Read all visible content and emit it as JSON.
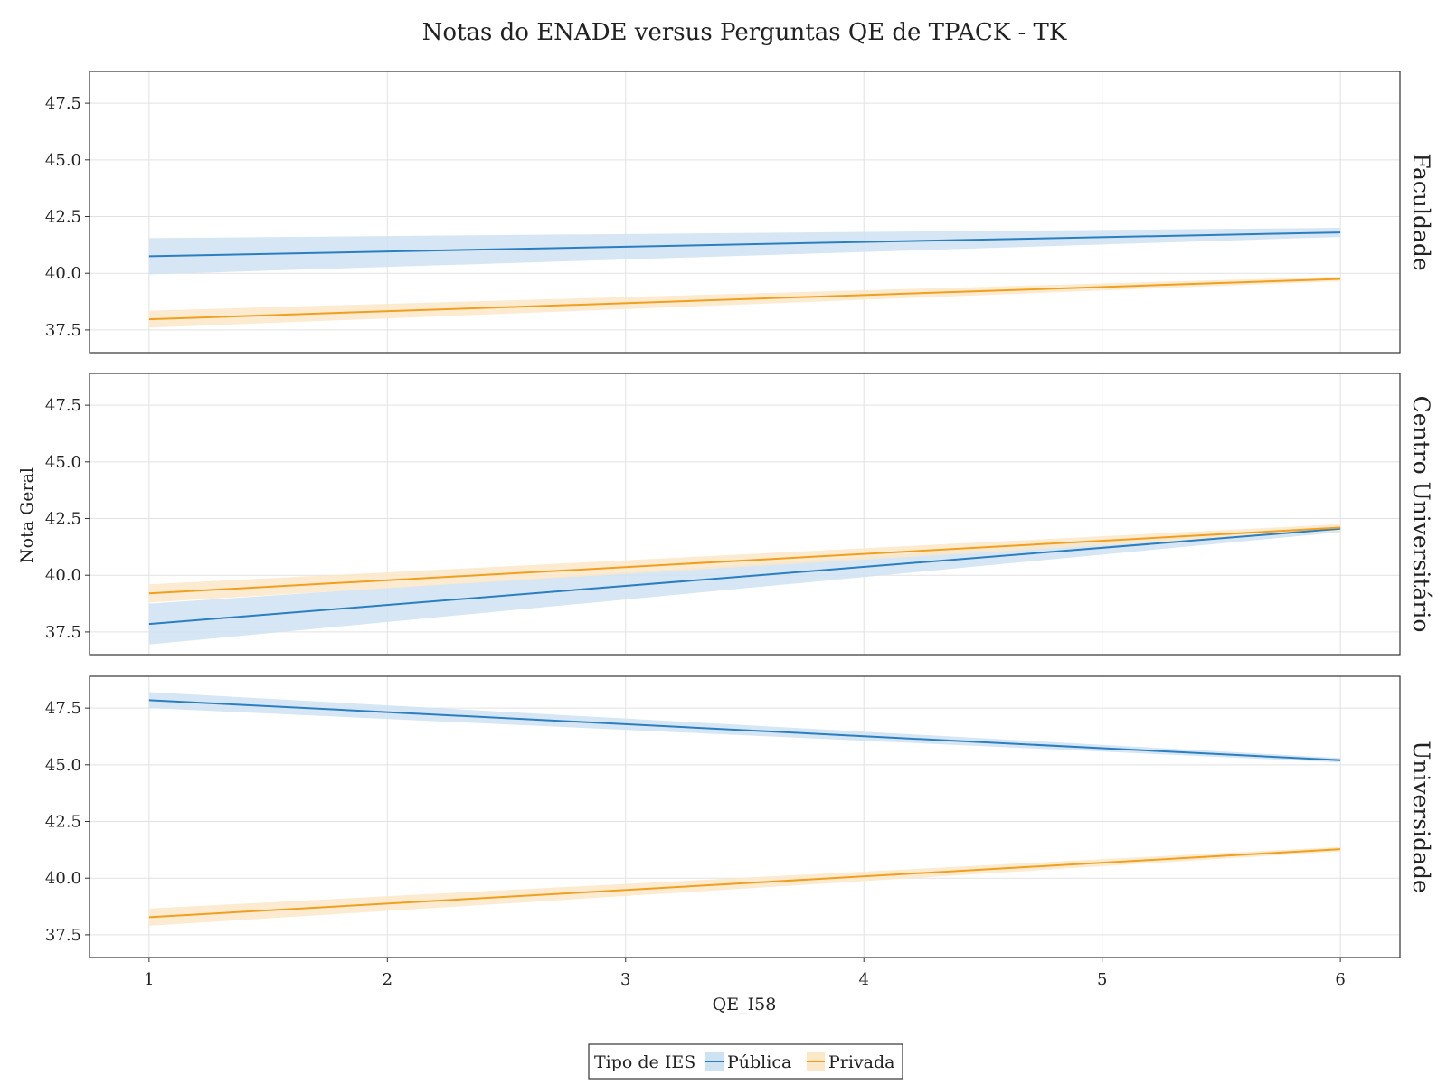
{
  "chart_data": {
    "type": "line",
    "title": "Notas do ENADE versus Perguntas QE de TPACK - TK",
    "xlabel": "QE_I58",
    "ylabel": "Nota Geral",
    "x_ticks": [
      1,
      2,
      3,
      4,
      5,
      6
    ],
    "y_ticks": [
      "37.5",
      "40.0",
      "42.5",
      "45.0",
      "47.5"
    ],
    "xlim": [
      0.75,
      6.25
    ],
    "ylim": [
      36.5,
      48.9
    ],
    "grid": true,
    "legend": {
      "title": "Tipo de IES",
      "placement": "bottom-center",
      "entries": [
        "Pública",
        "Privada"
      ]
    },
    "colors": {
      "Pública": "#2b7fc0",
      "Privada": "#f0a020",
      "Pública_band": "#cfe2f2",
      "Privada_band": "#fbe8c8"
    },
    "facets": [
      {
        "label": "Faculdade",
        "series": [
          {
            "name": "Pública",
            "x": [
              1,
              6
            ],
            "y": [
              40.75,
              41.8
            ],
            "lower": [
              39.95,
              41.6
            ],
            "upper": [
              41.55,
              42.0
            ]
          },
          {
            "name": "Privada",
            "x": [
              1,
              6
            ],
            "y": [
              37.97,
              39.75
            ],
            "lower": [
              37.6,
              39.65
            ],
            "upper": [
              38.35,
              39.85
            ]
          }
        ]
      },
      {
        "label": "Centro Universitário",
        "series": [
          {
            "name": "Pública",
            "x": [
              1,
              6
            ],
            "y": [
              37.85,
              42.05
            ],
            "lower": [
              36.95,
              41.9
            ],
            "upper": [
              38.75,
              42.2
            ]
          },
          {
            "name": "Privada",
            "x": [
              1,
              6
            ],
            "y": [
              39.2,
              42.1
            ],
            "lower": [
              38.8,
              41.95
            ],
            "upper": [
              39.6,
              42.25
            ]
          }
        ]
      },
      {
        "label": "Universidade",
        "series": [
          {
            "name": "Pública",
            "x": [
              1,
              6
            ],
            "y": [
              47.85,
              45.2
            ],
            "lower": [
              47.5,
              45.1
            ],
            "upper": [
              48.2,
              45.3
            ]
          },
          {
            "name": "Privada",
            "x": [
              1,
              6
            ],
            "y": [
              38.28,
              41.28
            ],
            "lower": [
              37.9,
              41.18
            ],
            "upper": [
              38.66,
              41.38
            ]
          }
        ]
      }
    ]
  }
}
